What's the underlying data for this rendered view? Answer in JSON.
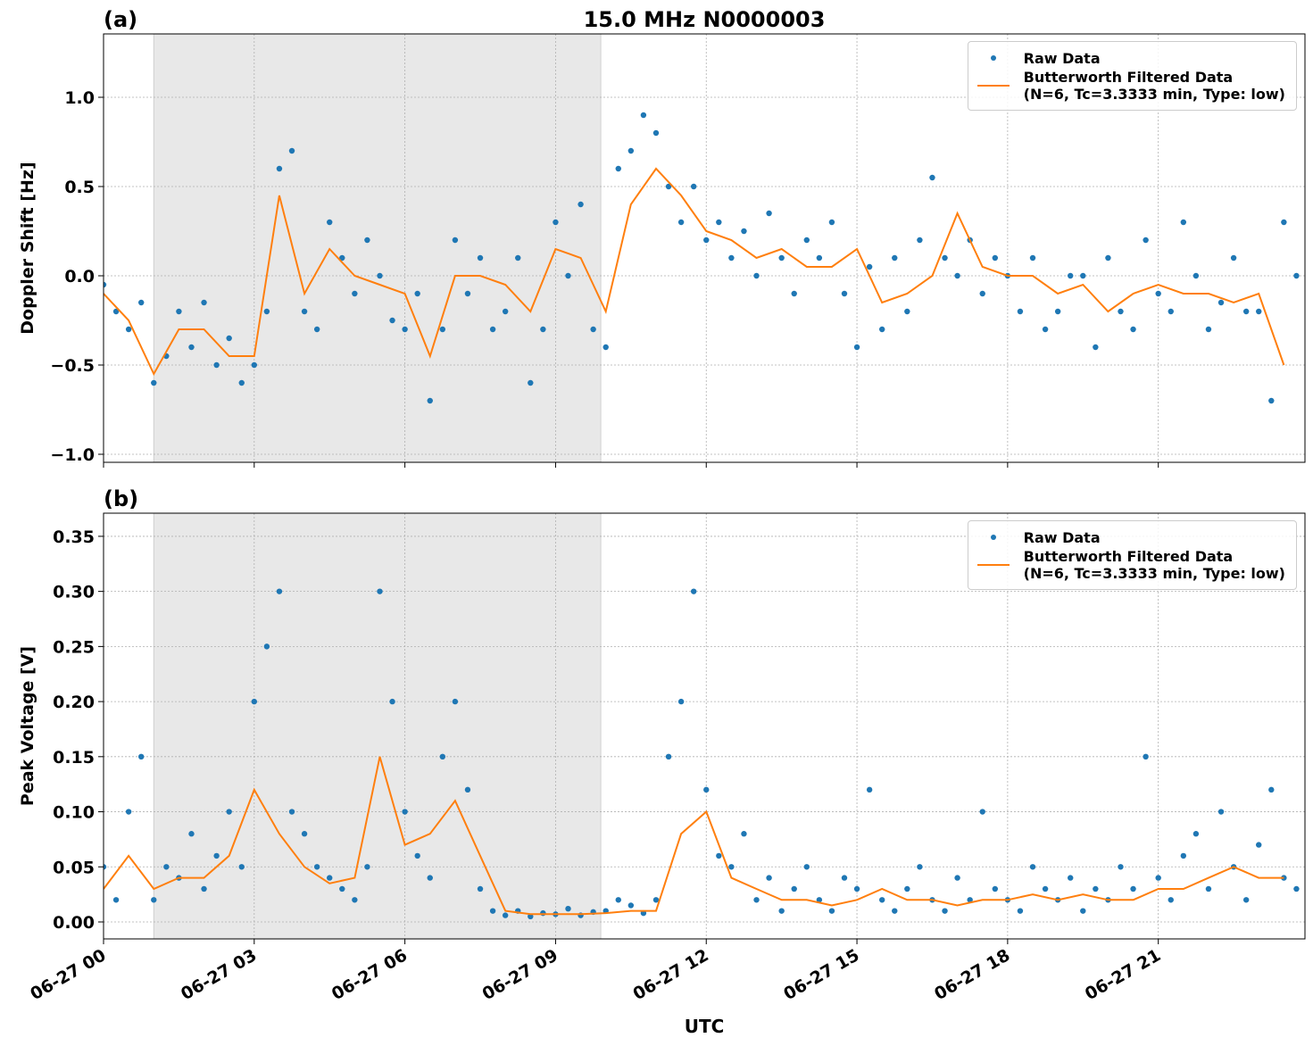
{
  "chart_data": [
    {
      "type": "scatter-line",
      "title": "15.0 MHz N0000003",
      "panel_label": "(a)",
      "ylabel": "Doppler Shift [Hz]",
      "xlim": [
        0,
        23.92
      ],
      "ylim": [
        -1.045,
        1.355
      ],
      "xticks": [
        0,
        3,
        6,
        9,
        12,
        15,
        18,
        21
      ],
      "yticks": [
        {
          "value": -1.0,
          "label": "−1.0"
        },
        {
          "value": -0.5,
          "label": "−0.5"
        },
        {
          "value": 0.0,
          "label": "0.0"
        },
        {
          "value": 0.5,
          "label": "0.5"
        },
        {
          "value": 1.0,
          "label": "1.0"
        }
      ],
      "grid": true,
      "legend": "upper right",
      "shaded_span": [
        1.0,
        9.9
      ],
      "series": [
        {
          "name": "Raw Data",
          "mode": "scatter",
          "color": "#1f77b4",
          "x": [
            0,
            0.25,
            0.5,
            0.75,
            1,
            1.25,
            1.5,
            1.75,
            2,
            2.25,
            2.5,
            2.75,
            3,
            3.25,
            3.5,
            3.75,
            4,
            4.25,
            4.5,
            4.75,
            5,
            5.25,
            5.5,
            5.75,
            6,
            6.25,
            6.5,
            6.75,
            7,
            7.25,
            7.5,
            7.75,
            8,
            8.25,
            8.5,
            8.75,
            9,
            9.25,
            9.5,
            9.75,
            10,
            10.25,
            10.5,
            10.75,
            11,
            11.25,
            11.5,
            11.75,
            12,
            12.25,
            12.5,
            12.75,
            13,
            13.25,
            13.5,
            13.75,
            14,
            14.25,
            14.5,
            14.75,
            15,
            15.25,
            15.5,
            15.75,
            16,
            16.25,
            16.5,
            16.75,
            17,
            17.25,
            17.5,
            17.75,
            18,
            18.25,
            18.5,
            18.75,
            19,
            19.25,
            19.5,
            19.75,
            20,
            20.25,
            20.5,
            20.75,
            21,
            21.25,
            21.5,
            21.75,
            22,
            22.25,
            22.5,
            22.75,
            23,
            23.25,
            23.5,
            23.75
          ],
          "values": [
            -0.05,
            -0.2,
            -0.3,
            -0.15,
            -0.6,
            -0.45,
            -0.2,
            -0.4,
            -0.15,
            -0.5,
            -0.35,
            -0.6,
            -0.5,
            -0.2,
            0.6,
            0.7,
            -0.2,
            -0.3,
            0.3,
            0.1,
            -0.1,
            0.2,
            0.0,
            -0.25,
            -0.3,
            -0.1,
            -0.7,
            -0.3,
            0.2,
            -0.1,
            0.1,
            -0.3,
            -0.2,
            0.1,
            -0.6,
            -0.3,
            0.3,
            0.0,
            0.4,
            -0.3,
            -0.4,
            0.6,
            0.7,
            0.9,
            0.8,
            0.5,
            0.3,
            0.5,
            0.2,
            0.3,
            0.1,
            0.25,
            0.0,
            0.35,
            0.1,
            -0.1,
            0.2,
            0.1,
            0.3,
            -0.1,
            -0.4,
            0.05,
            -0.3,
            0.1,
            -0.2,
            0.2,
            0.55,
            0.1,
            0.0,
            0.2,
            -0.1,
            0.1,
            0.0,
            -0.2,
            0.1,
            -0.3,
            -0.2,
            0.0,
            0.0,
            -0.4,
            0.1,
            -0.2,
            -0.3,
            0.2,
            -0.1,
            -0.2,
            0.3,
            0.0,
            -0.3,
            -0.15,
            0.1,
            -0.2,
            -0.2,
            -0.7,
            0.3,
            0.0
          ]
        },
        {
          "name": "Butterworth Filtered Data\n(N=6, Tc=3.3333 min, Type: low)",
          "mode": "line",
          "color": "#ff7f0e",
          "x": [
            0,
            0.5,
            1,
            1.5,
            2,
            2.5,
            3,
            3.5,
            4,
            4.5,
            5,
            5.5,
            6,
            6.5,
            7,
            7.5,
            8,
            8.5,
            9,
            9.5,
            10,
            10.5,
            11,
            11.5,
            12,
            12.5,
            13,
            13.5,
            14,
            14.5,
            15,
            15.5,
            16,
            16.5,
            17,
            17.5,
            18,
            18.5,
            19,
            19.5,
            20,
            20.5,
            21,
            21.5,
            22,
            22.5,
            23,
            23.5
          ],
          "values": [
            -0.1,
            -0.25,
            -0.55,
            -0.3,
            -0.3,
            -0.45,
            -0.45,
            0.45,
            -0.1,
            0.15,
            0.0,
            -0.05,
            -0.1,
            -0.45,
            0.0,
            0.0,
            -0.05,
            -0.2,
            0.15,
            0.1,
            -0.2,
            0.4,
            0.6,
            0.45,
            0.25,
            0.2,
            0.1,
            0.15,
            0.05,
            0.05,
            0.15,
            -0.15,
            -0.1,
            0.0,
            0.35,
            0.05,
            0.0,
            0.0,
            -0.1,
            -0.05,
            -0.2,
            -0.1,
            -0.05,
            -0.1,
            -0.1,
            -0.15,
            -0.1,
            -0.5
          ]
        }
      ]
    },
    {
      "type": "scatter-line",
      "panel_label": "(b)",
      "ylabel": "Peak Voltage [V]",
      "xlabel": "UTC",
      "xlim": [
        0,
        23.92
      ],
      "ylim": [
        -0.0154,
        0.371
      ],
      "xticks": [
        {
          "value": 0,
          "label": "06-27 00"
        },
        {
          "value": 3,
          "label": "06-27 03"
        },
        {
          "value": 6,
          "label": "06-27 06"
        },
        {
          "value": 9,
          "label": "06-27 09"
        },
        {
          "value": 12,
          "label": "06-27 12"
        },
        {
          "value": 15,
          "label": "06-27 15"
        },
        {
          "value": 18,
          "label": "06-27 18"
        },
        {
          "value": 21,
          "label": "06-27 21"
        }
      ],
      "yticks": [
        {
          "value": 0,
          "label": "0.00"
        },
        {
          "value": 0.05,
          "label": "0.05"
        },
        {
          "value": 0.1,
          "label": "0.10"
        },
        {
          "value": 0.15,
          "label": "0.15"
        },
        {
          "value": 0.2,
          "label": "0.20"
        },
        {
          "value": 0.25,
          "label": "0.25"
        },
        {
          "value": 0.3,
          "label": "0.30"
        },
        {
          "value": 0.35,
          "label": "0.35"
        }
      ],
      "grid": true,
      "legend": "upper right",
      "shaded_span": [
        1.0,
        9.9
      ],
      "series": [
        {
          "name": "Raw Data",
          "mode": "scatter",
          "color": "#1f77b4",
          "x": [
            0,
            0.25,
            0.5,
            0.75,
            1,
            1.25,
            1.5,
            1.75,
            2,
            2.25,
            2.5,
            2.75,
            3,
            3.25,
            3.5,
            3.75,
            4,
            4.25,
            4.5,
            4.75,
            5,
            5.25,
            5.5,
            5.75,
            6,
            6.25,
            6.5,
            6.75,
            7,
            7.25,
            7.5,
            7.75,
            8,
            8.25,
            8.5,
            8.75,
            9,
            9.25,
            9.5,
            9.75,
            10,
            10.25,
            10.5,
            10.75,
            11,
            11.25,
            11.5,
            11.75,
            12,
            12.25,
            12.5,
            12.75,
            13,
            13.25,
            13.5,
            13.75,
            14,
            14.25,
            14.5,
            14.75,
            15,
            15.25,
            15.5,
            15.75,
            16,
            16.25,
            16.5,
            16.75,
            17,
            17.25,
            17.5,
            17.75,
            18,
            18.25,
            18.5,
            18.75,
            19,
            19.25,
            19.5,
            19.75,
            20,
            20.25,
            20.5,
            20.75,
            21,
            21.25,
            21.5,
            21.75,
            22,
            22.25,
            22.5,
            22.75,
            23,
            23.25,
            23.5,
            23.75
          ],
          "values": [
            0.05,
            0.02,
            0.1,
            0.15,
            0.02,
            0.05,
            0.04,
            0.08,
            0.03,
            0.06,
            0.1,
            0.05,
            0.2,
            0.25,
            0.3,
            0.1,
            0.08,
            0.05,
            0.04,
            0.03,
            0.02,
            0.05,
            0.3,
            0.2,
            0.1,
            0.06,
            0.04,
            0.15,
            0.2,
            0.12,
            0.03,
            0.01,
            0.006,
            0.01,
            0.005,
            0.008,
            0.007,
            0.012,
            0.006,
            0.009,
            0.01,
            0.02,
            0.015,
            0.008,
            0.02,
            0.15,
            0.2,
            0.3,
            0.12,
            0.06,
            0.05,
            0.08,
            0.02,
            0.04,
            0.01,
            0.03,
            0.05,
            0.02,
            0.01,
            0.04,
            0.03,
            0.12,
            0.02,
            0.01,
            0.03,
            0.05,
            0.02,
            0.01,
            0.04,
            0.02,
            0.1,
            0.03,
            0.02,
            0.01,
            0.05,
            0.03,
            0.02,
            0.04,
            0.01,
            0.03,
            0.02,
            0.05,
            0.03,
            0.15,
            0.04,
            0.02,
            0.06,
            0.08,
            0.03,
            0.1,
            0.05,
            0.02,
            0.07,
            0.12,
            0.04,
            0.03
          ]
        },
        {
          "name": "Butterworth Filtered Data\n(N=6, Tc=3.3333 min, Type: low)",
          "mode": "line",
          "color": "#ff7f0e",
          "x": [
            0,
            0.5,
            1,
            1.5,
            2,
            2.5,
            3,
            3.5,
            4,
            4.5,
            5,
            5.5,
            6,
            6.5,
            7,
            7.5,
            8,
            8.5,
            9,
            9.5,
            10,
            10.5,
            11,
            11.5,
            12,
            12.5,
            13,
            13.5,
            14,
            14.5,
            15,
            15.5,
            16,
            16.5,
            17,
            17.5,
            18,
            18.5,
            19,
            19.5,
            20,
            20.5,
            21,
            21.5,
            22,
            22.5,
            23,
            23.5
          ],
          "values": [
            0.03,
            0.06,
            0.03,
            0.04,
            0.04,
            0.06,
            0.12,
            0.08,
            0.05,
            0.035,
            0.04,
            0.15,
            0.07,
            0.08,
            0.11,
            0.06,
            0.01,
            0.007,
            0.007,
            0.007,
            0.008,
            0.01,
            0.01,
            0.08,
            0.1,
            0.04,
            0.03,
            0.02,
            0.02,
            0.015,
            0.02,
            0.03,
            0.02,
            0.02,
            0.015,
            0.02,
            0.02,
            0.025,
            0.02,
            0.025,
            0.02,
            0.02,
            0.03,
            0.03,
            0.04,
            0.05,
            0.04,
            0.04
          ]
        }
      ]
    }
  ]
}
